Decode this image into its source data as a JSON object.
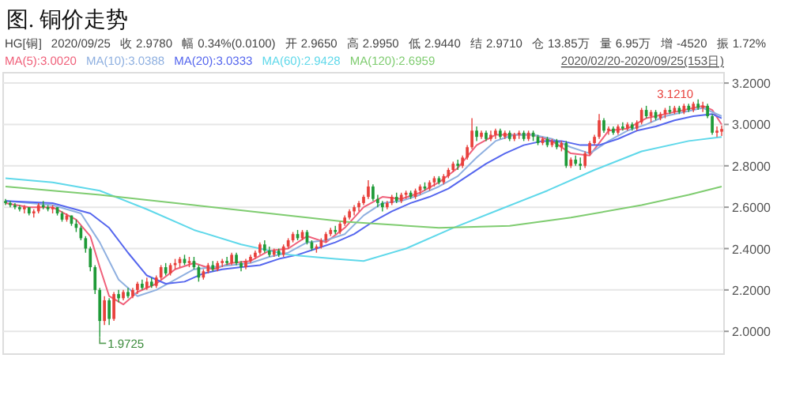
{
  "chart_data": {
    "type": "candlestick",
    "title": "图. 铜价走势",
    "annotations": [
      "HG[铜]",
      "2020/09/25",
      "收 2.9780",
      "幅 0.34%(0.0100)",
      "开 2.9650",
      "高 2.9950",
      "低 2.9440",
      "结 2.9710",
      "仓 13.85万",
      "量 6.95万",
      "增 -4520",
      "振 1.72%",
      "2020/02/20-2020/09/25(153日)",
      "1.9725",
      "3.1210"
    ],
    "categories": [
      null,
      null,
      null,
      null,
      null,
      null,
      null,
      null,
      null,
      null,
      null,
      null,
      null,
      null,
      null,
      null,
      null,
      null,
      null,
      null,
      null,
      null,
      null,
      null,
      null,
      null,
      null,
      null,
      null,
      null,
      null,
      null,
      null,
      null,
      null,
      null,
      null,
      null,
      null,
      null,
      null,
      null,
      null,
      null,
      null,
      null,
      null,
      null,
      null,
      null,
      null,
      null,
      null,
      null,
      null,
      null,
      null,
      null,
      null,
      null,
      null,
      null,
      null,
      null,
      null,
      null,
      null,
      null,
      null,
      null,
      null,
      null,
      null,
      null,
      null,
      null,
      null,
      null,
      null,
      null,
      null,
      null,
      null,
      null,
      null,
      null,
      null,
      null,
      null,
      null,
      null,
      null,
      null,
      null,
      null,
      null,
      null,
      null,
      null,
      null,
      null,
      null,
      null,
      null,
      null,
      null,
      null,
      null,
      null,
      null,
      null,
      null,
      null,
      null,
      null,
      null,
      null,
      null,
      null,
      null,
      null,
      null,
      null,
      null,
      null,
      null,
      null,
      null,
      null,
      null,
      null,
      null,
      null,
      null,
      null,
      null,
      null,
      null,
      null,
      null,
      null,
      null,
      null,
      null,
      null,
      null,
      null,
      null,
      null,
      null,
      null,
      null,
      null
    ],
    "ohlc": [
      [
        2.63,
        2.64,
        2.61,
        2.62
      ],
      [
        2.62,
        2.63,
        2.6,
        2.61
      ],
      [
        2.61,
        2.62,
        2.59,
        2.6
      ],
      [
        2.6,
        2.61,
        2.58,
        2.59
      ],
      [
        2.59,
        2.61,
        2.57,
        2.6
      ],
      [
        2.6,
        2.6,
        2.56,
        2.57
      ],
      [
        2.57,
        2.59,
        2.55,
        2.58
      ],
      [
        2.58,
        2.62,
        2.57,
        2.61
      ],
      [
        2.61,
        2.63,
        2.59,
        2.6
      ],
      [
        2.6,
        2.61,
        2.58,
        2.59
      ],
      [
        2.59,
        2.61,
        2.57,
        2.6
      ],
      [
        2.6,
        2.6,
        2.56,
        2.57
      ],
      [
        2.57,
        2.58,
        2.53,
        2.54
      ],
      [
        2.54,
        2.57,
        2.53,
        2.56
      ],
      [
        2.56,
        2.56,
        2.51,
        2.52
      ],
      [
        2.52,
        2.54,
        2.48,
        2.5
      ],
      [
        2.5,
        2.51,
        2.44,
        2.45
      ],
      [
        2.45,
        2.46,
        2.38,
        2.4
      ],
      [
        2.4,
        2.41,
        2.29,
        2.31
      ],
      [
        2.31,
        2.32,
        2.18,
        2.2
      ],
      [
        2.2,
        2.21,
        1.9725,
        2.05
      ],
      [
        2.05,
        2.17,
        2.03,
        2.15
      ],
      [
        2.15,
        2.16,
        2.03,
        2.06
      ],
      [
        2.06,
        2.19,
        2.05,
        2.18
      ],
      [
        2.18,
        2.2,
        2.14,
        2.16
      ],
      [
        2.16,
        2.2,
        2.15,
        2.19
      ],
      [
        2.19,
        2.21,
        2.16,
        2.17
      ],
      [
        2.17,
        2.21,
        2.16,
        2.2
      ],
      [
        2.2,
        2.24,
        2.18,
        2.23
      ],
      [
        2.23,
        2.25,
        2.2,
        2.21
      ],
      [
        2.21,
        2.26,
        2.2,
        2.24
      ],
      [
        2.24,
        2.26,
        2.21,
        2.22
      ],
      [
        2.22,
        2.27,
        2.21,
        2.26
      ],
      [
        2.26,
        2.32,
        2.25,
        2.31
      ],
      [
        2.31,
        2.33,
        2.27,
        2.28
      ],
      [
        2.28,
        2.33,
        2.27,
        2.32
      ],
      [
        2.32,
        2.35,
        2.3,
        2.33
      ],
      [
        2.33,
        2.36,
        2.31,
        2.35
      ],
      [
        2.35,
        2.37,
        2.32,
        2.33
      ],
      [
        2.33,
        2.36,
        2.31,
        2.34
      ],
      [
        2.34,
        2.36,
        2.3,
        2.31
      ],
      [
        2.31,
        2.32,
        2.24,
        2.26
      ],
      [
        2.26,
        2.3,
        2.25,
        2.29
      ],
      [
        2.29,
        2.33,
        2.28,
        2.32
      ],
      [
        2.32,
        2.34,
        2.29,
        2.3
      ],
      [
        2.3,
        2.34,
        2.29,
        2.33
      ],
      [
        2.33,
        2.35,
        2.31,
        2.34
      ],
      [
        2.34,
        2.36,
        2.32,
        2.33
      ],
      [
        2.33,
        2.38,
        2.32,
        2.37
      ],
      [
        2.37,
        2.38,
        2.32,
        2.33
      ],
      [
        2.33,
        2.34,
        2.29,
        2.31
      ],
      [
        2.31,
        2.35,
        2.3,
        2.34
      ],
      [
        2.34,
        2.37,
        2.33,
        2.36
      ],
      [
        2.36,
        2.39,
        2.35,
        2.38
      ],
      [
        2.38,
        2.43,
        2.37,
        2.42
      ],
      [
        2.42,
        2.44,
        2.38,
        2.39
      ],
      [
        2.39,
        2.41,
        2.36,
        2.37
      ],
      [
        2.37,
        2.4,
        2.36,
        2.39
      ],
      [
        2.39,
        2.4,
        2.36,
        2.37
      ],
      [
        2.37,
        2.42,
        2.36,
        2.41
      ],
      [
        2.41,
        2.45,
        2.4,
        2.44
      ],
      [
        2.44,
        2.48,
        2.43,
        2.47
      ],
      [
        2.47,
        2.49,
        2.44,
        2.45
      ],
      [
        2.45,
        2.49,
        2.44,
        2.48
      ],
      [
        2.48,
        2.49,
        2.42,
        2.43
      ],
      [
        2.43,
        2.44,
        2.39,
        2.4
      ],
      [
        2.4,
        2.42,
        2.38,
        2.41
      ],
      [
        2.41,
        2.45,
        2.4,
        2.44
      ],
      [
        2.44,
        2.48,
        2.43,
        2.47
      ],
      [
        2.47,
        2.5,
        2.46,
        2.49
      ],
      [
        2.49,
        2.51,
        2.47,
        2.48
      ],
      [
        2.48,
        2.53,
        2.47,
        2.52
      ],
      [
        2.52,
        2.56,
        2.51,
        2.55
      ],
      [
        2.55,
        2.59,
        2.54,
        2.58
      ],
      [
        2.58,
        2.61,
        2.56,
        2.6
      ],
      [
        2.6,
        2.63,
        2.58,
        2.62
      ],
      [
        2.62,
        2.66,
        2.61,
        2.65
      ],
      [
        2.65,
        2.73,
        2.64,
        2.7
      ],
      [
        2.7,
        2.71,
        2.63,
        2.64
      ],
      [
        2.64,
        2.66,
        2.6,
        2.62
      ],
      [
        2.62,
        2.63,
        2.58,
        2.6
      ],
      [
        2.6,
        2.63,
        2.59,
        2.62
      ],
      [
        2.62,
        2.66,
        2.61,
        2.65
      ],
      [
        2.65,
        2.67,
        2.62,
        2.63
      ],
      [
        2.63,
        2.67,
        2.62,
        2.66
      ],
      [
        2.66,
        2.68,
        2.64,
        2.67
      ],
      [
        2.67,
        2.68,
        2.64,
        2.65
      ],
      [
        2.65,
        2.69,
        2.64,
        2.68
      ],
      [
        2.68,
        2.71,
        2.66,
        2.7
      ],
      [
        2.7,
        2.72,
        2.68,
        2.69
      ],
      [
        2.69,
        2.73,
        2.68,
        2.72
      ],
      [
        2.72,
        2.75,
        2.7,
        2.74
      ],
      [
        2.74,
        2.75,
        2.71,
        2.72
      ],
      [
        2.72,
        2.76,
        2.71,
        2.75
      ],
      [
        2.75,
        2.79,
        2.74,
        2.78
      ],
      [
        2.78,
        2.82,
        2.77,
        2.81
      ],
      [
        2.81,
        2.83,
        2.78,
        2.8
      ],
      [
        2.8,
        2.85,
        2.79,
        2.84
      ],
      [
        2.84,
        2.9,
        2.83,
        2.89
      ],
      [
        2.89,
        3.03,
        2.88,
        2.97
      ],
      [
        2.97,
        2.99,
        2.92,
        2.94
      ],
      [
        2.94,
        2.97,
        2.93,
        2.96
      ],
      [
        2.96,
        2.97,
        2.92,
        2.93
      ],
      [
        2.93,
        2.97,
        2.92,
        2.95
      ],
      [
        2.95,
        2.98,
        2.93,
        2.97
      ],
      [
        2.97,
        2.98,
        2.93,
        2.94
      ],
      [
        2.94,
        2.97,
        2.93,
        2.96
      ],
      [
        2.96,
        2.97,
        2.92,
        2.93
      ],
      [
        2.93,
        2.96,
        2.92,
        2.95
      ],
      [
        2.95,
        2.97,
        2.93,
        2.96
      ],
      [
        2.96,
        2.97,
        2.92,
        2.93
      ],
      [
        2.93,
        2.97,
        2.92,
        2.96
      ],
      [
        2.96,
        2.97,
        2.92,
        2.94
      ],
      [
        2.94,
        2.95,
        2.9,
        2.91
      ],
      [
        2.91,
        2.94,
        2.9,
        2.93
      ],
      [
        2.93,
        2.94,
        2.89,
        2.9
      ],
      [
        2.9,
        2.93,
        2.89,
        2.92
      ],
      [
        2.92,
        2.93,
        2.88,
        2.89
      ],
      [
        2.89,
        2.92,
        2.87,
        2.91
      ],
      [
        2.91,
        2.92,
        2.79,
        2.8
      ],
      [
        2.8,
        2.84,
        2.79,
        2.83
      ],
      [
        2.83,
        2.85,
        2.8,
        2.81
      ],
      [
        2.81,
        2.84,
        2.78,
        2.8
      ],
      [
        2.8,
        2.87,
        2.79,
        2.86
      ],
      [
        2.86,
        2.92,
        2.85,
        2.91
      ],
      [
        2.91,
        2.95,
        2.9,
        2.94
      ],
      [
        2.94,
        3.05,
        2.93,
        3.02
      ],
      [
        3.02,
        3.03,
        2.96,
        2.97
      ],
      [
        2.97,
        2.99,
        2.95,
        2.98
      ],
      [
        2.98,
        2.99,
        2.95,
        2.96
      ],
      [
        2.96,
        3.0,
        2.95,
        2.99
      ],
      [
        2.99,
        3.01,
        2.97,
        2.98
      ],
      [
        2.98,
        3.01,
        2.97,
        3.0
      ],
      [
        3.0,
        3.01,
        2.97,
        2.98
      ],
      [
        2.98,
        3.02,
        2.97,
        3.01
      ],
      [
        3.01,
        3.08,
        3.0,
        3.07
      ],
      [
        3.07,
        3.09,
        3.03,
        3.04
      ],
      [
        3.04,
        3.07,
        3.01,
        3.06
      ],
      [
        3.06,
        3.07,
        3.02,
        3.03
      ],
      [
        3.03,
        3.06,
        3.02,
        3.05
      ],
      [
        3.05,
        3.08,
        3.03,
        3.07
      ],
      [
        3.07,
        3.09,
        3.05,
        3.06
      ],
      [
        3.06,
        3.09,
        3.05,
        3.08
      ],
      [
        3.08,
        3.09,
        3.05,
        3.06
      ],
      [
        3.06,
        3.1,
        3.05,
        3.09
      ],
      [
        3.09,
        3.1,
        3.06,
        3.07
      ],
      [
        3.07,
        3.11,
        3.06,
        3.1
      ],
      [
        3.1,
        3.121,
        3.07,
        3.08
      ],
      [
        3.08,
        3.11,
        3.06,
        3.09
      ],
      [
        3.09,
        3.1,
        3.03,
        3.04
      ],
      [
        3.04,
        3.05,
        2.95,
        2.96
      ],
      [
        2.96,
        2.99,
        2.94,
        2.97
      ],
      [
        2.965,
        2.995,
        2.944,
        2.978
      ]
    ],
    "colors": [
      "#1e9a37",
      "#1e9a37",
      "#1e9a37",
      "#1e9a37",
      "#e8413c",
      "#1e9a37",
      "#e8413c",
      "#e8413c",
      "#1e9a37",
      "#1e9a37",
      "#e8413c",
      "#1e9a37",
      "#1e9a37",
      "#e8413c",
      "#1e9a37",
      "#1e9a37",
      "#1e9a37",
      "#1e9a37",
      "#1e9a37",
      "#1e9a37",
      "#1e9a37",
      "#e8413c",
      "#1e9a37",
      "#e8413c",
      "#1e9a37",
      "#e8413c",
      "#1e9a37",
      "#e8413c",
      "#e8413c",
      "#1e9a37",
      "#e8413c",
      "#1e9a37",
      "#e8413c",
      "#e8413c",
      "#1e9a37",
      "#e8413c",
      "#e8413c",
      "#e8413c",
      "#1e9a37",
      "#e8413c",
      "#1e9a37",
      "#1e9a37",
      "#e8413c",
      "#e8413c",
      "#1e9a37",
      "#e8413c",
      "#e8413c",
      "#1e9a37",
      "#e8413c",
      "#1e9a37",
      "#1e9a37",
      "#e8413c",
      "#e8413c",
      "#e8413c",
      "#e8413c",
      "#1e9a37",
      "#1e9a37",
      "#e8413c",
      "#1e9a37",
      "#e8413c",
      "#e8413c",
      "#e8413c",
      "#1e9a37",
      "#e8413c",
      "#1e9a37",
      "#1e9a37",
      "#e8413c",
      "#e8413c",
      "#e8413c",
      "#e8413c",
      "#1e9a37",
      "#e8413c",
      "#e8413c",
      "#e8413c",
      "#e8413c",
      "#e8413c",
      "#e8413c",
      "#e8413c",
      "#1e9a37",
      "#1e9a37",
      "#1e9a37",
      "#e8413c",
      "#e8413c",
      "#1e9a37",
      "#e8413c",
      "#e8413c",
      "#1e9a37",
      "#e8413c",
      "#e8413c",
      "#1e9a37",
      "#e8413c",
      "#e8413c",
      "#1e9a37",
      "#e8413c",
      "#e8413c",
      "#e8413c",
      "#1e9a37",
      "#e8413c",
      "#e8413c",
      "#e8413c",
      "#1e9a37",
      "#e8413c",
      "#1e9a37",
      "#e8413c",
      "#e8413c",
      "#1e9a37",
      "#e8413c",
      "#1e9a37",
      "#e8413c",
      "#e8413c",
      "#1e9a37",
      "#e8413c",
      "#1e9a37",
      "#1e9a37",
      "#e8413c",
      "#1e9a37",
      "#e8413c",
      "#1e9a37",
      "#e8413c",
      "#1e9a37",
      "#e8413c",
      "#1e9a37",
      "#1e9a37",
      "#e8413c",
      "#e8413c",
      "#e8413c",
      "#e8413c",
      "#1e9a37",
      "#e8413c",
      "#1e9a37",
      "#e8413c",
      "#1e9a37",
      "#e8413c",
      "#1e9a37",
      "#e8413c",
      "#e8413c",
      "#1e9a37",
      "#e8413c",
      "#1e9a37",
      "#e8413c",
      "#e8413c",
      "#1e9a37",
      "#e8413c",
      "#1e9a37",
      "#e8413c",
      "#1e9a37",
      "#e8413c",
      "#1e9a37",
      "#e8413c",
      "#1e9a37",
      "#1e9a37",
      "#e8413c",
      "#e8413c"
    ],
    "series": [
      {
        "name": "MA(5):3.0020",
        "type": "line",
        "color": "#f0607a",
        "values": [
          2.62,
          null,
          null,
          null,
          null,
          2.6,
          null,
          null,
          null,
          null,
          2.6,
          null,
          null,
          null,
          null,
          2.54,
          null,
          null,
          2.46,
          null,
          2.31,
          null,
          2.17,
          null,
          null,
          2.13,
          null,
          null,
          2.19,
          null,
          null,
          null,
          2.23,
          null,
          null,
          null,
          2.3,
          null,
          null,
          null,
          2.33,
          null,
          null,
          null,
          2.3,
          null,
          null,
          null,
          2.33,
          null,
          null,
          null,
          2.34,
          null,
          null,
          null,
          2.39,
          null,
          null,
          null,
          2.4,
          null,
          null,
          null,
          2.46,
          null,
          null,
          null,
          2.43,
          null,
          null,
          null,
          2.5,
          null,
          null,
          null,
          2.6,
          null,
          null,
          null,
          2.65,
          null,
          null,
          null,
          2.64,
          null,
          null,
          null,
          2.67,
          null,
          null,
          null,
          2.72,
          null,
          null,
          null,
          2.79,
          null,
          null,
          null,
          2.9,
          null,
          null,
          null,
          2.95,
          null,
          null,
          null,
          2.95,
          null,
          null,
          null,
          2.95,
          null,
          null,
          null,
          2.92,
          null,
          null,
          null,
          2.86,
          null,
          null,
          null,
          2.85,
          null,
          null,
          null,
          2.97,
          null,
          null,
          null,
          2.98,
          null,
          null,
          null,
          3.03,
          null,
          null,
          null,
          3.05,
          null,
          null,
          null,
          3.07,
          null,
          null,
          null,
          3.09,
          null,
          3.07,
          null,
          3.0
        ]
      },
      {
        "name": "MA(10):3.0388",
        "type": "line",
        "color": "#8fb0e0",
        "values": [
          2.63,
          null,
          null,
          null,
          null,
          null,
          null,
          null,
          null,
          null,
          2.61,
          null,
          null,
          null,
          null,
          null,
          2.57,
          null,
          null,
          null,
          2.43,
          null,
          null,
          null,
          2.25,
          null,
          null,
          null,
          2.17,
          null,
          null,
          null,
          2.2,
          null,
          null,
          null,
          2.25,
          null,
          null,
          null,
          2.3,
          null,
          null,
          null,
          2.31,
          null,
          null,
          null,
          2.32,
          null,
          null,
          null,
          2.33,
          null,
          null,
          null,
          2.36,
          null,
          null,
          null,
          2.38,
          null,
          null,
          null,
          2.43,
          null,
          null,
          null,
          2.44,
          null,
          null,
          null,
          2.47,
          null,
          null,
          null,
          2.56,
          null,
          null,
          null,
          2.62,
          null,
          null,
          null,
          2.63,
          null,
          null,
          null,
          2.66,
          null,
          null,
          null,
          2.7,
          null,
          null,
          null,
          2.75,
          null,
          null,
          null,
          2.84,
          null,
          null,
          null,
          2.92,
          null,
          null,
          null,
          2.95,
          null,
          null,
          null,
          2.95,
          null,
          null,
          null,
          2.93,
          null,
          null,
          null,
          2.89,
          null,
          null,
          null,
          2.86,
          null,
          null,
          null,
          2.92,
          null,
          null,
          null,
          2.97,
          null,
          null,
          null,
          3.0,
          null,
          null,
          null,
          3.04,
          null,
          null,
          null,
          3.06,
          null,
          null,
          null,
          3.08,
          null,
          null,
          null,
          3.04
        ]
      },
      {
        "name": "MA(20):3.0333",
        "type": "line",
        "color": "#5566ee",
        "values": [
          2.63,
          null,
          null,
          null,
          null,
          null,
          null,
          null,
          null,
          null,
          2.62,
          null,
          null,
          null,
          null,
          null,
          null,
          null,
          2.57,
          null,
          null,
          null,
          2.5,
          null,
          null,
          null,
          2.38,
          null,
          null,
          null,
          2.27,
          null,
          null,
          null,
          2.23,
          null,
          null,
          null,
          2.24,
          null,
          null,
          null,
          2.28,
          null,
          null,
          null,
          2.3,
          null,
          null,
          null,
          2.31,
          null,
          null,
          null,
          2.32,
          null,
          null,
          null,
          2.35,
          null,
          null,
          null,
          2.37,
          null,
          null,
          null,
          2.4,
          null,
          null,
          null,
          2.43,
          null,
          null,
          null,
          2.47,
          null,
          null,
          null,
          2.53,
          null,
          null,
          null,
          2.58,
          null,
          null,
          null,
          2.62,
          null,
          null,
          null,
          2.65,
          null,
          null,
          null,
          2.69,
          null,
          null,
          null,
          2.75,
          null,
          null,
          null,
          2.81,
          null,
          null,
          null,
          2.86,
          null,
          null,
          null,
          2.9,
          null,
          null,
          null,
          2.92,
          null,
          null,
          null,
          2.92,
          null,
          null,
          null,
          2.9,
          null,
          null,
          null,
          2.9,
          null,
          null,
          null,
          2.93,
          null,
          null,
          null,
          2.97,
          null,
          null,
          null,
          2.99,
          null,
          null,
          null,
          3.02,
          null,
          null,
          null,
          3.04,
          null,
          null,
          null,
          3.05,
          null,
          3.03
        ]
      },
      {
        "name": "MA(60):2.9428",
        "type": "line",
        "color": "#5fd8ea",
        "values": [
          2.74,
          null,
          null,
          null,
          null,
          null,
          null,
          null,
          null,
          null,
          2.72,
          null,
          null,
          null,
          null,
          null,
          null,
          null,
          null,
          null,
          2.68,
          null,
          null,
          null,
          null,
          null,
          null,
          null,
          null,
          null,
          2.59,
          null,
          null,
          null,
          null,
          null,
          null,
          null,
          null,
          null,
          2.49,
          null,
          null,
          null,
          null,
          null,
          null,
          null,
          null,
          null,
          2.42,
          null,
          null,
          null,
          null,
          null,
          null,
          null,
          null,
          null,
          2.37,
          null,
          null,
          null,
          null,
          null,
          null,
          null,
          null,
          null,
          2.35,
          null,
          null,
          null,
          null,
          null,
          2.34,
          null,
          null,
          null,
          null,
          null,
          null,
          null,
          null,
          2.4,
          null,
          null,
          null,
          null,
          null,
          null,
          null,
          null,
          null,
          2.5,
          null,
          null,
          null,
          null,
          null,
          null,
          null,
          null,
          null,
          2.59,
          null,
          null,
          null,
          null,
          null,
          null,
          null,
          null,
          null,
          2.68,
          null,
          null,
          null,
          null,
          null,
          null,
          null,
          null,
          null,
          2.78,
          null,
          null,
          null,
          null,
          null,
          null,
          null,
          null,
          null,
          2.87,
          null,
          null,
          null,
          null,
          null,
          null,
          null,
          null,
          null,
          2.92,
          null,
          null,
          null,
          null,
          null,
          null,
          2.94
        ]
      },
      {
        "name": "MA(120):2.6959",
        "type": "line",
        "color": "#7fcc70",
        "values": [
          2.7,
          null,
          null,
          null,
          null,
          null,
          null,
          null,
          null,
          null,
          null,
          null,
          null,
          null,
          null,
          null,
          null,
          null,
          null,
          null,
          2.66,
          null,
          null,
          null,
          null,
          null,
          null,
          null,
          null,
          null,
          null,
          null,
          null,
          null,
          null,
          null,
          null,
          null,
          null,
          null,
          2.61,
          null,
          null,
          null,
          null,
          null,
          null,
          null,
          null,
          null,
          null,
          null,
          null,
          null,
          null,
          null,
          2.57,
          null,
          null,
          null,
          null,
          null,
          null,
          null,
          null,
          null,
          null,
          null,
          null,
          null,
          null,
          null,
          2.53,
          null,
          null,
          null,
          null,
          null,
          null,
          null,
          null,
          null,
          null,
          null,
          null,
          null,
          null,
          null,
          null,
          null,
          null,
          null,
          2.5,
          null,
          null,
          null,
          null,
          null,
          null,
          null,
          null,
          null,
          null,
          null,
          null,
          null,
          null,
          2.51,
          null,
          null,
          null,
          null,
          null,
          null,
          null,
          null,
          null,
          null,
          null,
          null,
          2.55,
          null,
          null,
          null,
          null,
          null,
          null,
          null,
          null,
          null,
          null,
          null,
          null,
          null,
          null,
          2.61,
          null,
          null,
          null,
          null,
          null,
          null,
          null,
          null,
          null,
          2.66,
          null,
          null,
          null,
          null,
          null,
          null,
          2.7
        ]
      }
    ],
    "ylim": [
      1.89,
      3.25
    ],
    "yticks": [
      {
        "value": 2.0,
        "label": "2.0000"
      },
      {
        "value": 2.2,
        "label": "2.2000"
      },
      {
        "value": 2.4,
        "label": "2.4000"
      },
      {
        "value": 2.6,
        "label": "2.6000"
      },
      {
        "value": 2.8,
        "label": "2.8000"
      },
      {
        "value": 3.0,
        "label": "3.0000"
      },
      {
        "value": 3.2,
        "label": "3.2000"
      }
    ],
    "grid": "y",
    "marker": "none",
    "line_style": "solid",
    "tick_labels": "y"
  }
}
